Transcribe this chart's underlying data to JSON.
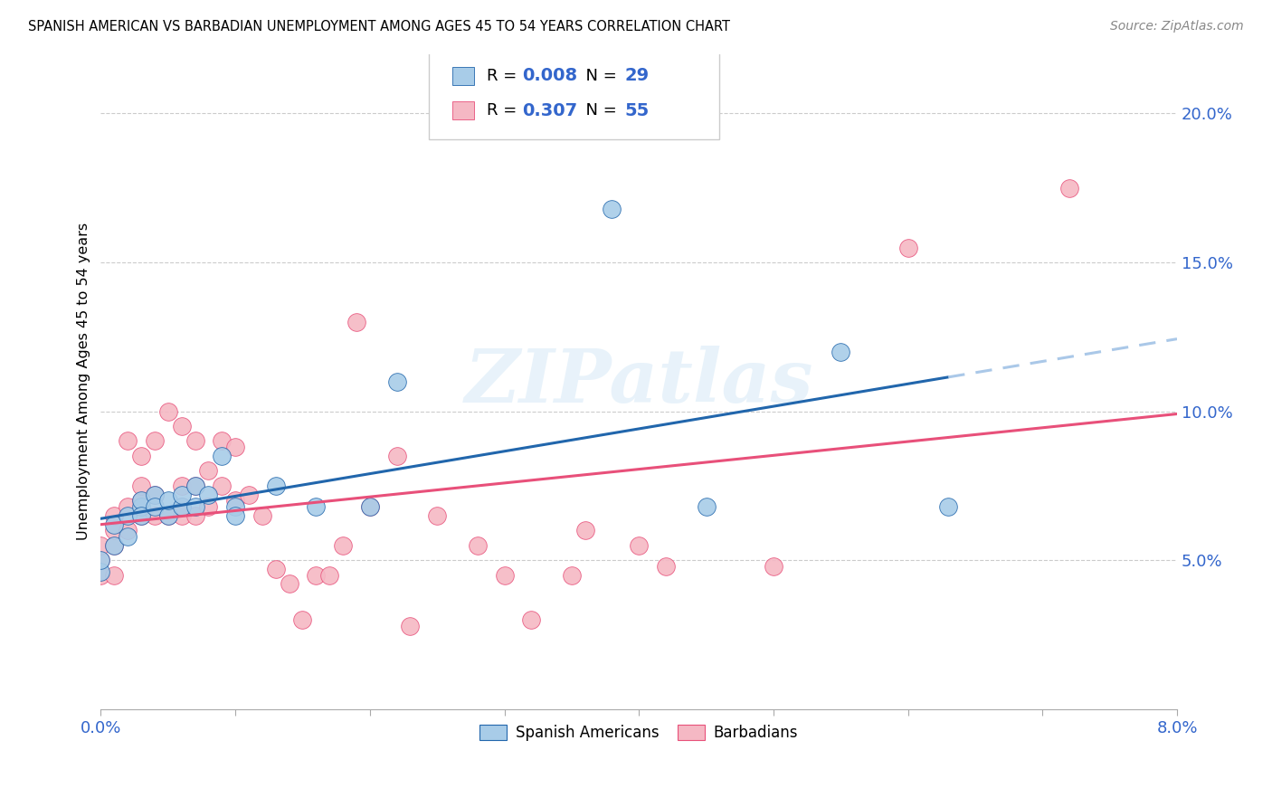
{
  "title": "SPANISH AMERICAN VS BARBADIAN UNEMPLOYMENT AMONG AGES 45 TO 54 YEARS CORRELATION CHART",
  "source": "Source: ZipAtlas.com",
  "ylabel": "Unemployment Among Ages 45 to 54 years",
  "ytick_labels": [
    "5.0%",
    "10.0%",
    "15.0%",
    "20.0%"
  ],
  "ytick_values": [
    0.05,
    0.1,
    0.15,
    0.2
  ],
  "xlim": [
    0.0,
    0.08
  ],
  "ylim": [
    0.0,
    0.22
  ],
  "color_blue": "#a8cce8",
  "color_pink": "#f5b8c4",
  "color_blue_line": "#2166ac",
  "color_pink_line": "#e8507a",
  "color_blue_dashed": "#aac8e8",
  "text_color_blue": "#3366cc",
  "watermark": "ZIPatlas",
  "spanish_x": [
    0.0,
    0.0,
    0.001,
    0.001,
    0.002,
    0.002,
    0.003,
    0.003,
    0.003,
    0.004,
    0.004,
    0.005,
    0.005,
    0.006,
    0.006,
    0.007,
    0.007,
    0.008,
    0.009,
    0.01,
    0.01,
    0.013,
    0.016,
    0.02,
    0.022,
    0.038,
    0.045,
    0.055,
    0.063
  ],
  "spanish_y": [
    0.046,
    0.05,
    0.055,
    0.062,
    0.058,
    0.065,
    0.068,
    0.07,
    0.065,
    0.072,
    0.068,
    0.065,
    0.07,
    0.068,
    0.072,
    0.068,
    0.075,
    0.072,
    0.085,
    0.068,
    0.065,
    0.075,
    0.068,
    0.068,
    0.11,
    0.168,
    0.068,
    0.12,
    0.068
  ],
  "barbadian_x": [
    0.0,
    0.0,
    0.0,
    0.001,
    0.001,
    0.001,
    0.001,
    0.002,
    0.002,
    0.002,
    0.003,
    0.003,
    0.003,
    0.003,
    0.004,
    0.004,
    0.004,
    0.005,
    0.005,
    0.006,
    0.006,
    0.006,
    0.006,
    0.007,
    0.007,
    0.007,
    0.008,
    0.008,
    0.009,
    0.009,
    0.01,
    0.01,
    0.011,
    0.012,
    0.013,
    0.014,
    0.015,
    0.016,
    0.017,
    0.018,
    0.019,
    0.02,
    0.022,
    0.023,
    0.025,
    0.028,
    0.03,
    0.032,
    0.035,
    0.036,
    0.04,
    0.042,
    0.05,
    0.06,
    0.072
  ],
  "barbadian_y": [
    0.045,
    0.05,
    0.055,
    0.045,
    0.055,
    0.06,
    0.065,
    0.06,
    0.068,
    0.09,
    0.065,
    0.07,
    0.075,
    0.085,
    0.065,
    0.072,
    0.09,
    0.065,
    0.1,
    0.065,
    0.068,
    0.075,
    0.095,
    0.065,
    0.075,
    0.09,
    0.068,
    0.08,
    0.075,
    0.09,
    0.07,
    0.088,
    0.072,
    0.065,
    0.047,
    0.042,
    0.03,
    0.045,
    0.045,
    0.055,
    0.13,
    0.068,
    0.085,
    0.028,
    0.065,
    0.055,
    0.045,
    0.03,
    0.045,
    0.06,
    0.055,
    0.048,
    0.048,
    0.155,
    0.175
  ],
  "legend_r1_label": "R = ",
  "legend_r1_val": "0.008",
  "legend_n1_label": "  N = ",
  "legend_n1_val": "29",
  "legend_r2_label": "R = ",
  "legend_r2_val": "0.307",
  "legend_n2_label": "  N = ",
  "legend_n2_val": "55"
}
